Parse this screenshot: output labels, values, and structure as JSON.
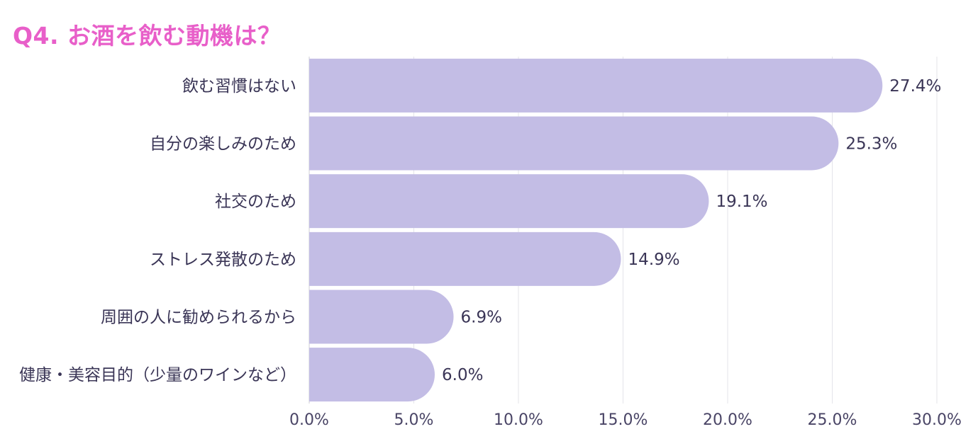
{
  "chart_data": {
    "type": "bar",
    "orientation": "horizontal",
    "title": "Q4. お酒を飲む動機は？",
    "categories": [
      "飲む習慣はない",
      "自分の楽しみのため",
      "社交のため",
      "ストレス発散のため",
      "周囲の人に勧められるから",
      "健康・美容目的（少量のワインなど）"
    ],
    "values": [
      27.4,
      25.3,
      19.1,
      14.9,
      6.9,
      6.0
    ],
    "value_labels": [
      "27.4%",
      "25.3%",
      "19.1%",
      "14.9%",
      "6.9%",
      "6.0%"
    ],
    "xlim": [
      0,
      30
    ],
    "xticks": [
      0,
      5,
      10,
      15,
      20,
      25,
      30
    ],
    "xtick_labels": [
      "0.0%",
      "5.0%",
      "10.0%",
      "15.0%",
      "20.0%",
      "25.0%",
      "30.0%"
    ],
    "xlabel": "",
    "ylabel": "",
    "grid": true,
    "legend": "none",
    "bar_color": "#c3bde5",
    "title_color": "#e85fc9",
    "text_color": "#3a3556"
  }
}
